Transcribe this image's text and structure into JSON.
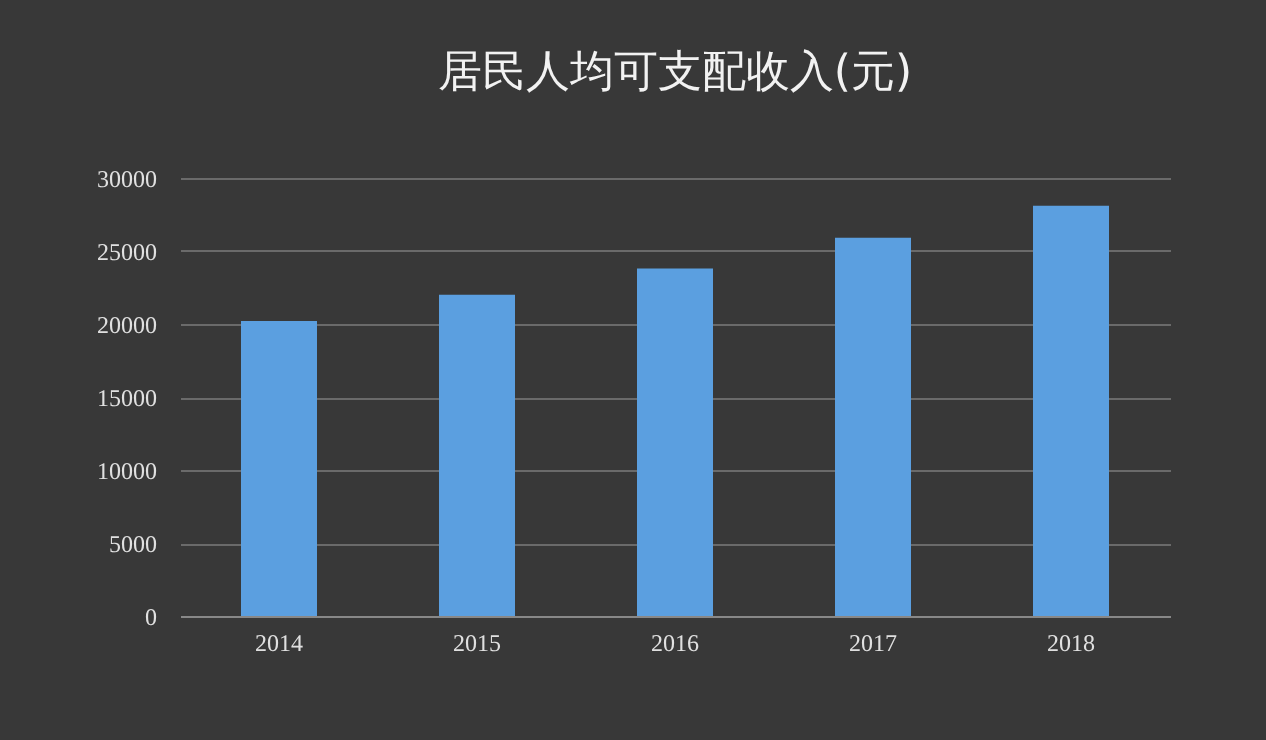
{
  "chart_data": {
    "type": "bar",
    "title": "居民人均可支配收入(元)",
    "categories": [
      "2014",
      "2015",
      "2016",
      "2017",
      "2018"
    ],
    "values": [
      20200,
      22000,
      23800,
      25900,
      28100
    ],
    "color": "#5b9fe0",
    "ylim": [
      0,
      30000
    ],
    "yticks": [
      0,
      5000,
      10000,
      15000,
      20000,
      25000,
      30000
    ],
    "grid": "y"
  }
}
